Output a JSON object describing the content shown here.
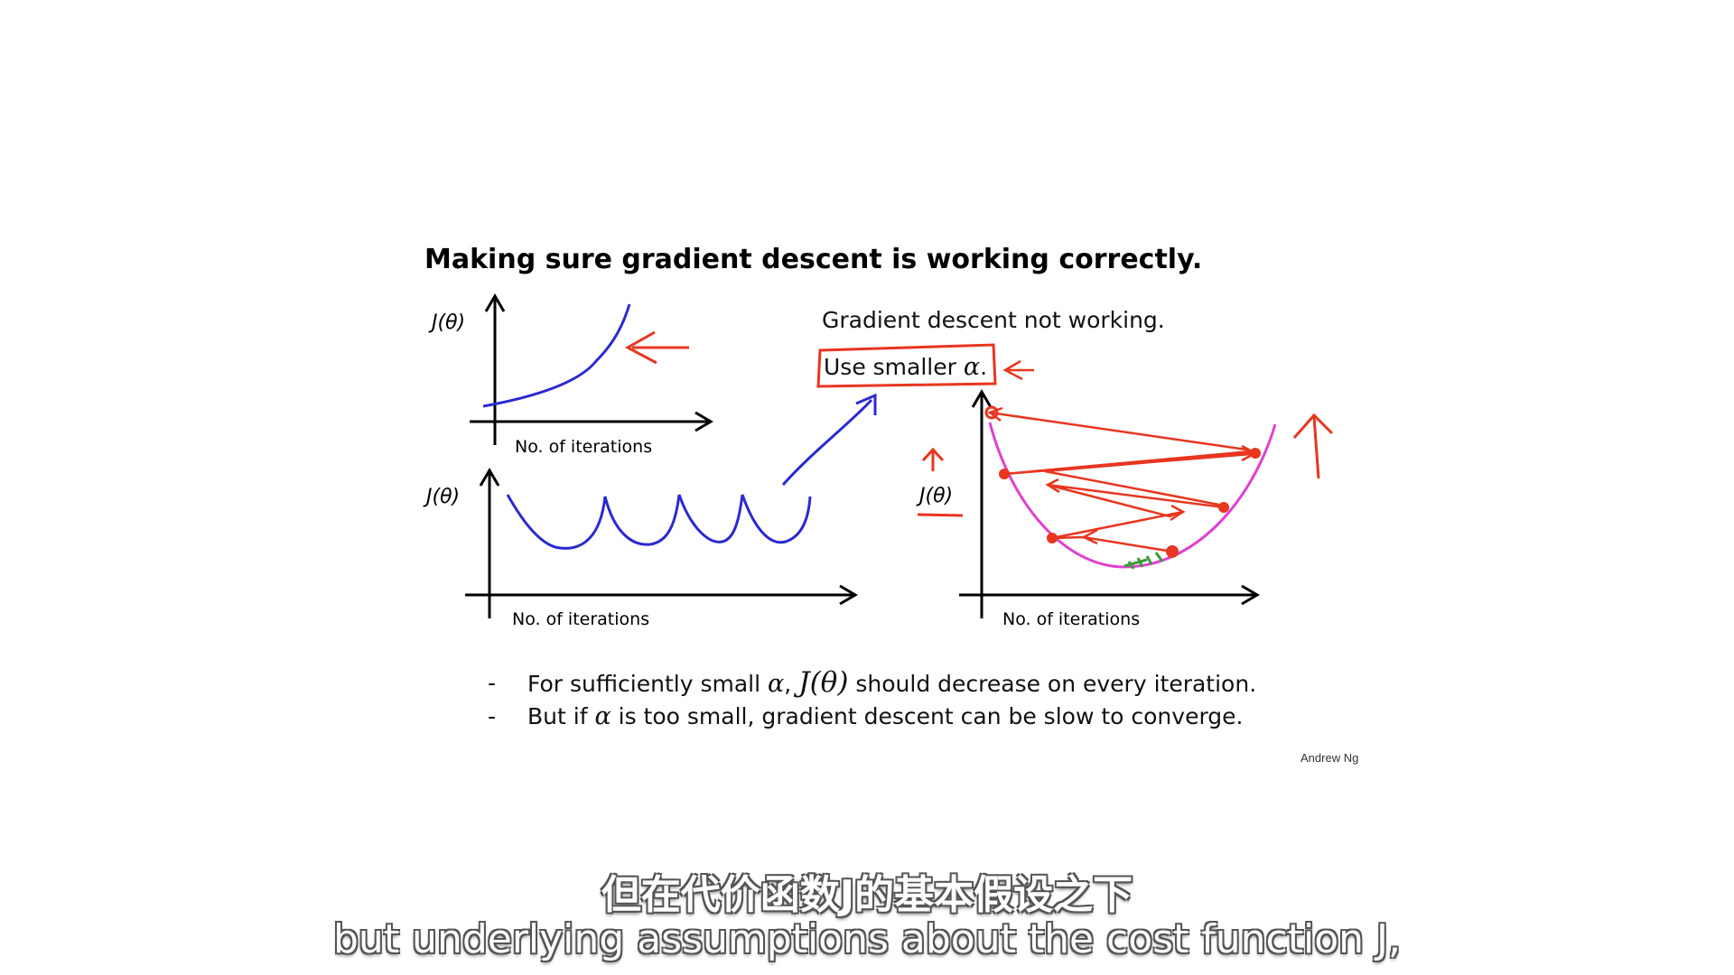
{
  "slide": {
    "title": "Making sure gradient descent is working correctly.",
    "message_line1": "Gradient descent not working.",
    "message_line2_prefix": "Use smaller ",
    "alpha_symbol": "α",
    "message_line2_suffix": ".",
    "plots": {
      "ylabel": "J(θ)",
      "xlabel": "No. of iterations"
    },
    "bullets": [
      {
        "dash": "-",
        "part1": "For sufficiently small ",
        "sym1": "α",
        "part2": ",  ",
        "sym2": "J(θ)",
        "part3": " should decrease on every iteration."
      },
      {
        "dash": "-",
        "part1": "But if ",
        "sym1": "α",
        "part2": " is too small, gradient descent can be slow to converge."
      }
    ],
    "credit": "Andrew Ng"
  },
  "subtitles": {
    "chinese": "但在代价函数J的基本假设之下",
    "english": "but underlying assumptions about the cost function J,"
  },
  "colors": {
    "ink": "#000000",
    "blue_curve": "#2a2ad0",
    "red_annotation": "#e8361f",
    "magenta_curve": "#e040d0",
    "green_marks": "#3a9a3a"
  }
}
